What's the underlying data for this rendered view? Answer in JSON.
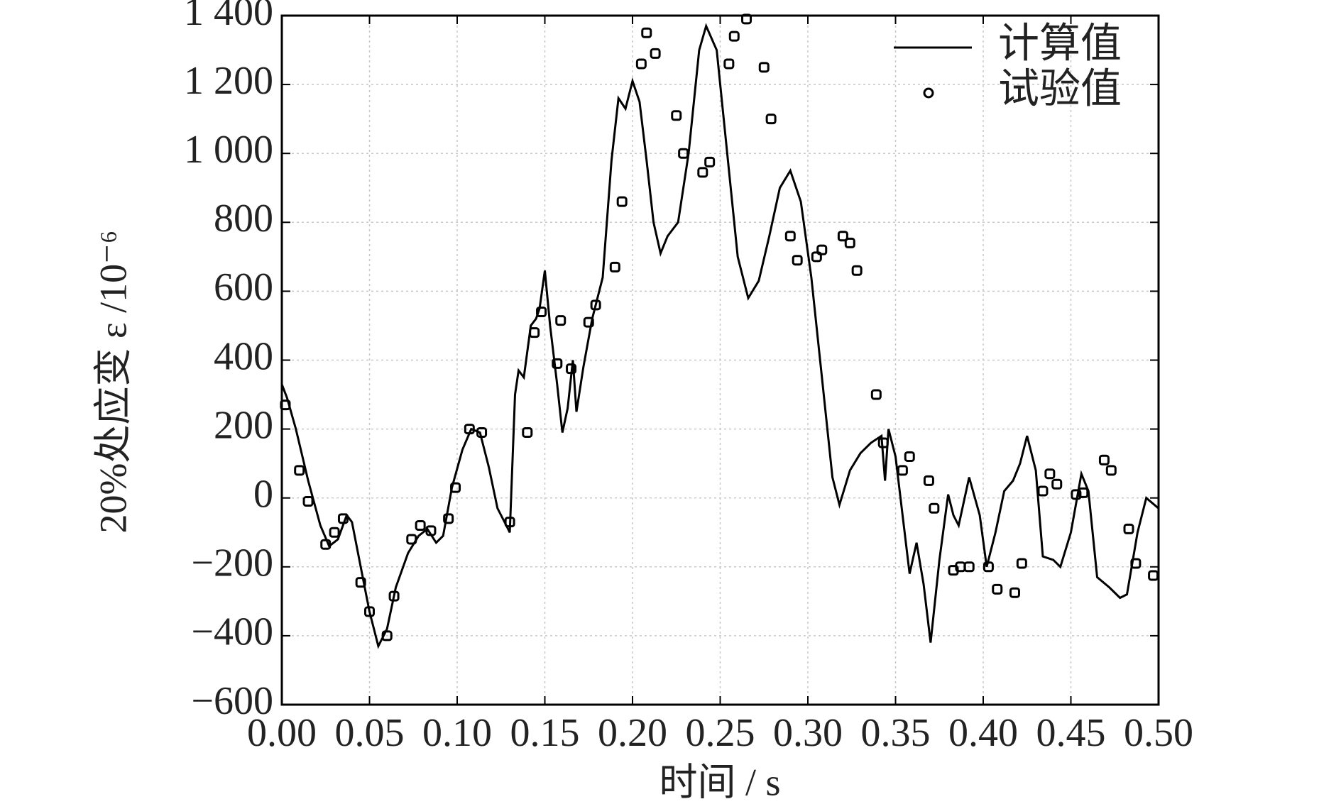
{
  "chart_data": {
    "type": "line",
    "xlabel": "时间 / s",
    "ylabel": "20%处应变 ε /10⁻⁶",
    "xlim": [
      0,
      0.5
    ],
    "ylim": [
      -600,
      1400
    ],
    "xticks": [
      {
        "value": 0,
        "label": "0.00"
      },
      {
        "value": 0.05,
        "label": "0.05"
      },
      {
        "value": 0.1,
        "label": "0.10"
      },
      {
        "value": 0.15,
        "label": "0.15"
      },
      {
        "value": 0.2,
        "label": "0.20"
      },
      {
        "value": 0.25,
        "label": "0.25"
      },
      {
        "value": 0.3,
        "label": "0.30"
      },
      {
        "value": 0.35,
        "label": "0.35"
      },
      {
        "value": 0.4,
        "label": "0.40"
      },
      {
        "value": 0.45,
        "label": "0.45"
      },
      {
        "value": 0.5,
        "label": "0.50"
      }
    ],
    "yticks": [
      {
        "value": -600,
        "label": "−600"
      },
      {
        "value": -400,
        "label": "−400"
      },
      {
        "value": -200,
        "label": "−200"
      },
      0,
      200,
      400,
      600,
      800,
      {
        "value": 1000,
        "label": "1 000"
      },
      {
        "value": 1200,
        "label": "1 200"
      },
      {
        "value": 1400,
        "label": "1 400"
      }
    ],
    "grid": true,
    "legend": "upper right",
    "series": [
      {
        "name": "计算值",
        "type": "line",
        "color": "#000000",
        "x": [
          0,
          0.003,
          0.008,
          0.015,
          0.022,
          0.027,
          0.032,
          0.037,
          0.04,
          0.045,
          0.05,
          0.055,
          0.06,
          0.065,
          0.072,
          0.078,
          0.083,
          0.088,
          0.092,
          0.097,
          0.103,
          0.108,
          0.113,
          0.118,
          0.123,
          0.128,
          0.13,
          0.133,
          0.135,
          0.138,
          0.142,
          0.145,
          0.147,
          0.15,
          0.153,
          0.157,
          0.16,
          0.163,
          0.166,
          0.168,
          0.172,
          0.177,
          0.183,
          0.188,
          0.192,
          0.196,
          0.2,
          0.204,
          0.208,
          0.212,
          0.216,
          0.22,
          0.226,
          0.232,
          0.238,
          0.242,
          0.248,
          0.254,
          0.26,
          0.266,
          0.272,
          0.278,
          0.284,
          0.29,
          0.296,
          0.302,
          0.308,
          0.314,
          0.318,
          0.324,
          0.33,
          0.336,
          0.342,
          0.344,
          0.346,
          0.35,
          0.354,
          0.358,
          0.362,
          0.366,
          0.37,
          0.375,
          0.38,
          0.383,
          0.386,
          0.392,
          0.398,
          0.402,
          0.407,
          0.412,
          0.417,
          0.421,
          0.425,
          0.43,
          0.434,
          0.44,
          0.444,
          0.45,
          0.456,
          0.46,
          0.465,
          0.472,
          0.478,
          0.482,
          0.488,
          0.493,
          0.5
        ],
        "values": [
          330,
          290,
          200,
          50,
          -80,
          -140,
          -120,
          -50,
          -70,
          -200,
          -330,
          -430,
          -380,
          -260,
          -160,
          -110,
          -90,
          -130,
          -110,
          30,
          140,
          200,
          190,
          90,
          -30,
          -80,
          -100,
          300,
          370,
          350,
          500,
          520,
          550,
          660,
          500,
          330,
          190,
          260,
          400,
          250,
          380,
          520,
          640,
          980,
          1160,
          1130,
          1210,
          1150,
          980,
          800,
          710,
          760,
          800,
          1000,
          1300,
          1370,
          1300,
          1000,
          700,
          580,
          630,
          760,
          900,
          950,
          860,
          640,
          350,
          60,
          -20,
          80,
          130,
          160,
          180,
          50,
          200,
          120,
          -50,
          -220,
          -130,
          -250,
          -420,
          -180,
          10,
          -50,
          -80,
          60,
          -50,
          -200,
          -100,
          20,
          50,
          100,
          180,
          80,
          -170,
          -180,
          -200,
          -100,
          70,
          20,
          -230,
          -260,
          -290,
          -280,
          -100,
          0,
          -30
        ]
      },
      {
        "name": "试验值",
        "type": "scatter",
        "color": "#000000",
        "x": [
          0.002,
          0.01,
          0.015,
          0.025,
          0.03,
          0.035,
          0.045,
          0.05,
          0.06,
          0.064,
          0.074,
          0.079,
          0.085,
          0.095,
          0.099,
          0.107,
          0.114,
          0.13,
          0.14,
          0.144,
          0.148,
          0.157,
          0.159,
          0.165,
          0.175,
          0.179,
          0.19,
          0.194,
          0.205,
          0.208,
          0.213,
          0.225,
          0.229,
          0.24,
          0.244,
          0.255,
          0.258,
          0.265,
          0.275,
          0.279,
          0.29,
          0.294,
          0.305,
          0.308,
          0.32,
          0.324,
          0.328,
          0.339,
          0.343,
          0.354,
          0.358,
          0.369,
          0.372,
          0.383,
          0.387,
          0.392,
          0.403,
          0.408,
          0.418,
          0.422,
          0.434,
          0.438,
          0.442,
          0.453,
          0.457,
          0.469,
          0.473,
          0.483,
          0.487,
          0.497
        ],
        "values": [
          270,
          80,
          -10,
          -135,
          -100,
          -60,
          -245,
          -330,
          -400,
          -285,
          -120,
          -80,
          -95,
          -60,
          30,
          200,
          190,
          -70,
          190,
          480,
          540,
          390,
          515,
          375,
          510,
          560,
          670,
          860,
          1260,
          1350,
          1290,
          1110,
          1000,
          945,
          975,
          1260,
          1340,
          1390,
          1250,
          1100,
          760,
          690,
          700,
          720,
          760,
          740,
          660,
          300,
          160,
          80,
          120,
          50,
          -30,
          -210,
          -200,
          -200,
          -200,
          -265,
          -275,
          -190,
          20,
          70,
          40,
          10,
          15,
          110,
          80,
          -90,
          -190,
          -225
        ]
      }
    ]
  }
}
